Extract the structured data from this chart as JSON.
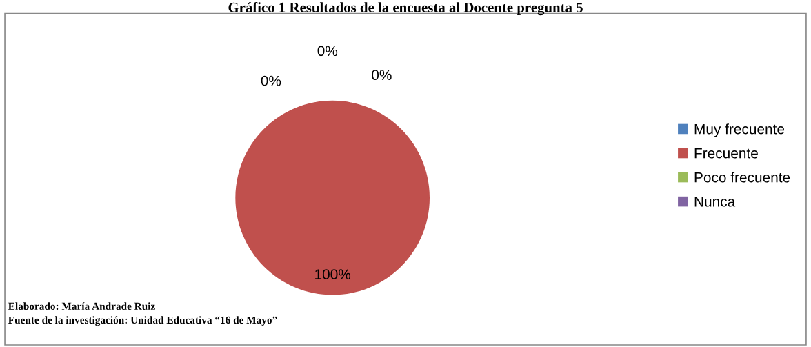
{
  "chart_data": {
    "type": "pie",
    "title": "Gráfico 1 Resultados de la encuesta al Docente pregunta 5",
    "categories": [
      "Muy frecuente",
      "Frecuente",
      "Poco frecuente",
      "Nunca"
    ],
    "values": [
      0,
      100,
      0,
      0
    ],
    "colors": [
      "#4f81bd",
      "#c0504d",
      "#9bbb59",
      "#8064a2"
    ],
    "value_labels": [
      "0%",
      "100%",
      "0%",
      "0%"
    ],
    "legend": "right",
    "annotations": [
      "Elaborado: María Andrade Ruiz",
      "Fuente de la investigación: Unidad Educativa “16 de Mayo”"
    ]
  }
}
